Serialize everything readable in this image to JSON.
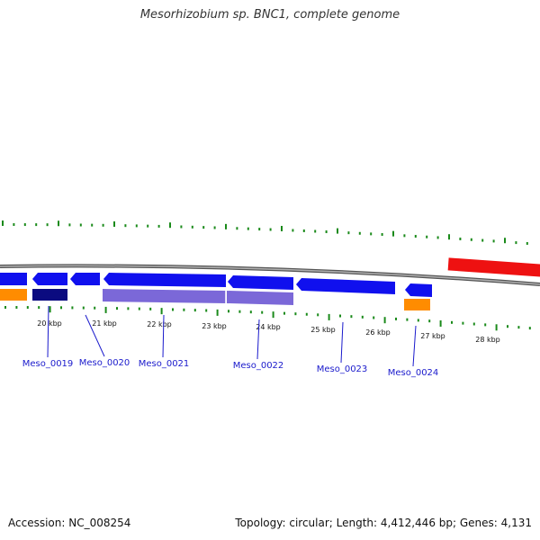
{
  "title": "Mesorhizobium sp. BNC1, complete genome",
  "footer": {
    "accession": "Accession: NC_008254",
    "summary": "Topology: circular; Length: 4,412,446 bp; Genes: 4,131"
  },
  "scale_labels": [
    "20 kbp",
    "21 kbp",
    "22 kbp",
    "23 kbp",
    "24 kbp",
    "25 kbp",
    "26 kbp",
    "27 kbp",
    "28 kbp"
  ],
  "gene_labels": [
    "Meso_0019",
    "Meso_0020",
    "Meso_0021",
    "Meso_0022",
    "Meso_0023",
    "Meso_0024"
  ],
  "colors": {
    "cds": "#1010ee",
    "cds_dark": "#0b0b80",
    "feature_light": "#7b68d8",
    "rna": "#ff8c00",
    "highlight": "#ee1111",
    "backbone": "#888888",
    "gc_ticks": "#1a8a1a",
    "labels": "#1a1acc"
  }
}
